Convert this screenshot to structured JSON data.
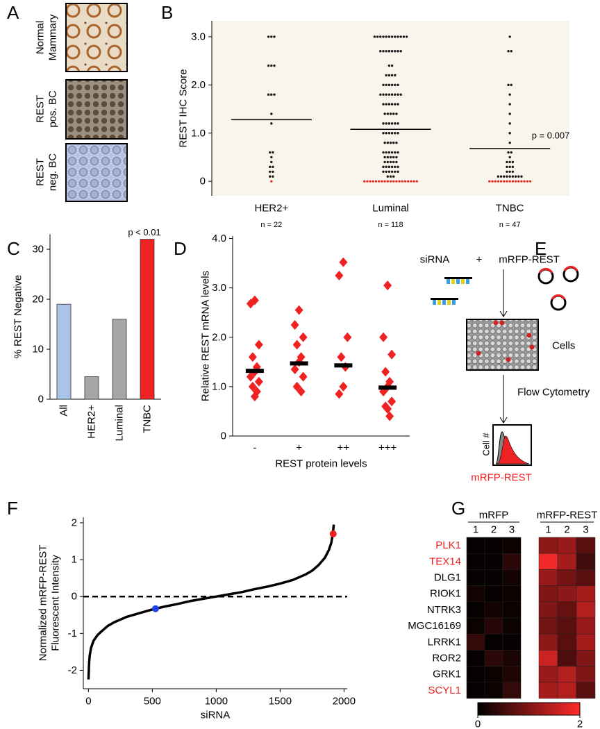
{
  "panel_a": {
    "label": "A",
    "images": [
      {
        "lines": [
          "Normal",
          "Mammary"
        ]
      },
      {
        "lines": [
          "REST",
          "pos. BC"
        ]
      },
      {
        "lines": [
          "REST",
          "neg. BC"
        ]
      }
    ]
  },
  "panel_e": {
    "label": "E",
    "sirna": "siRNA",
    "plus": "+",
    "plasmid": "mRFP-REST",
    "cells": "Cells",
    "method": "Flow Cytometry",
    "y_label": "Cell #",
    "x_label": "mRFP-REST"
  },
  "chart_data": [
    {
      "type": "dotplot",
      "label": "B",
      "y_label": "REST IHC Score",
      "categories": [
        "HER2+",
        "Luminal",
        "TNBC"
      ],
      "n_labels": [
        "n = 22",
        "n = 118",
        "n = 47"
      ],
      "levels": [
        0,
        0.1,
        0.2,
        0.3,
        0.4,
        0.5,
        0.6,
        0.8,
        1.0,
        1.2,
        1.4,
        1.6,
        1.8,
        2.0,
        2.2,
        2.4,
        2.7,
        3.0
      ],
      "counts": [
        [
          1,
          2,
          2,
          2,
          1,
          1,
          2,
          0,
          0,
          1,
          1,
          0,
          3,
          0,
          0,
          3,
          0,
          3
        ],
        [
          19,
          3,
          6,
          6,
          5,
          5,
          6,
          5,
          6,
          6,
          5,
          6,
          8,
          6,
          4,
          2,
          8,
          12
        ],
        [
          15,
          9,
          3,
          3,
          3,
          1,
          2,
          1,
          1,
          1,
          1,
          1,
          1,
          2,
          0,
          0,
          2,
          1
        ]
      ],
      "means": [
        1.28,
        1.08,
        0.68
      ],
      "color": "#1a1a1a",
      "zero_color": "#e8332a",
      "background": "#f8f5ec",
      "annotation": "p = 0.007",
      "ylim": [
        -0.3,
        3.33
      ],
      "yticks": [
        0,
        {
          "value": 1,
          "label": "1.0"
        },
        {
          "value": 2,
          "label": "2.0"
        },
        {
          "value": 3,
          "label": "3.0"
        }
      ]
    },
    {
      "type": "bar",
      "label": "C",
      "y_label": "% REST Negative",
      "categories": [
        "All",
        "HER2+",
        "Luminal",
        "TNBC"
      ],
      "values": [
        19,
        4.5,
        16,
        32
      ],
      "colors": [
        "#a8c4e8",
        "#a6a6a6",
        "#a6a6a6",
        "#ee2222"
      ],
      "annotation": "p < 0.01",
      "ylim": [
        0,
        33
      ],
      "yticks": [
        0,
        10,
        20,
        30
      ]
    },
    {
      "type": "scatter",
      "label": "D",
      "x_label": "REST protein levels",
      "y_label": "Relative REST mRNA levels",
      "categories": [
        "-",
        "+",
        "++",
        "+++"
      ],
      "points": [
        [
          2.75,
          2.68,
          1.85,
          1.6,
          1.4,
          1.3,
          1.2,
          1.1,
          1.0,
          0.9,
          0.8
        ],
        [
          2.55,
          2.25,
          2.0,
          1.85,
          1.6,
          1.5,
          1.35,
          1.2,
          1.0,
          0.9
        ],
        [
          3.52,
          3.25,
          2.0,
          1.6,
          1.4,
          1.0,
          0.85
        ],
        [
          3.05,
          2.0,
          1.65,
          1.3,
          1.1,
          1.0,
          0.9,
          0.7,
          0.6,
          0.4,
          0.55
        ]
      ],
      "means": [
        1.32,
        1.47,
        1.43,
        0.98
      ],
      "color": "#ee2222",
      "ylim": [
        0,
        4.05
      ],
      "yticks": [
        0,
        {
          "value": 1,
          "label": "1.0"
        },
        {
          "value": 2,
          "label": "2.0"
        },
        {
          "value": 3,
          "label": "3.0"
        },
        {
          "value": 4,
          "label": "4.0"
        }
      ]
    },
    {
      "type": "line",
      "label": "F",
      "x_label": "siRNA",
      "y_label": [
        "Normalized mRFP-REST",
        "Fluorescent Intensity"
      ],
      "x": [
        0,
        5,
        10,
        20,
        40,
        70,
        100,
        150,
        200,
        300,
        400,
        500,
        600,
        700,
        800,
        900,
        1000,
        1100,
        1200,
        1300,
        1400,
        1500,
        1600,
        1700,
        1750,
        1800,
        1850,
        1880,
        1900,
        1910,
        1920
      ],
      "y": [
        -2.25,
        -1.8,
        -1.6,
        -1.4,
        -1.2,
        -1.05,
        -0.95,
        -0.8,
        -0.7,
        -0.55,
        -0.45,
        -0.35,
        -0.27,
        -0.2,
        -0.12,
        -0.06,
        0,
        0.06,
        0.12,
        0.2,
        0.27,
        0.35,
        0.45,
        0.6,
        0.7,
        0.85,
        1.05,
        1.25,
        1.45,
        1.65,
        1.95
      ],
      "color": "#000000",
      "highlights": [
        {
          "x": 525,
          "y": -0.33,
          "color": "#2244ee"
        },
        {
          "x": 1915,
          "y": 1.7,
          "color": "#ee2222"
        }
      ],
      "reference_line": 0,
      "xlim": [
        -40,
        2025
      ],
      "ylim": [
        -2.5,
        2.15
      ],
      "xticks": [
        0,
        500,
        1000,
        1500,
        2000
      ],
      "yticks": [
        -2,
        -1,
        0,
        1,
        2
      ]
    },
    {
      "type": "heatmap",
      "label": "G",
      "rows": [
        "PLK1",
        "TEX14",
        "DLG1",
        "RIOK1",
        "NTRK3",
        "MGC16169",
        "LRRK1",
        "ROR2",
        "GRK1",
        "SCYL1"
      ],
      "row_colors": [
        "#ee2222",
        "#ee2222",
        "#000000",
        "#000000",
        "#000000",
        "#000000",
        "#000000",
        "#000000",
        "#000000",
        "#ee2222"
      ],
      "groups": [
        {
          "name": "mRFP",
          "columns": [
            "1",
            "2",
            "3"
          ],
          "values": [
            [
              0.05,
              0.05,
              0.1
            ],
            [
              0.05,
              0.05,
              0.35
            ],
            [
              0.05,
              0.05,
              0.15
            ],
            [
              0.15,
              0.05,
              0.1
            ],
            [
              0.05,
              0.15,
              0.1
            ],
            [
              0.1,
              0.3,
              0.1
            ],
            [
              0.4,
              0.05,
              0.05
            ],
            [
              0.05,
              0.35,
              0.2
            ],
            [
              0.05,
              0.1,
              0.25
            ],
            [
              0.05,
              0.1,
              0.4
            ]
          ]
        },
        {
          "name": "mRFP-REST",
          "columns": [
            "1",
            "2",
            "3"
          ],
          "values": [
            [
              1.1,
              1.2,
              0.7
            ],
            [
              1.9,
              1.3,
              0.5
            ],
            [
              1.2,
              0.9,
              0.7
            ],
            [
              1.0,
              1.1,
              1.3
            ],
            [
              1.0,
              0.8,
              1.4
            ],
            [
              0.9,
              0.7,
              1.2
            ],
            [
              1.1,
              0.7,
              1.3
            ],
            [
              1.6,
              0.6,
              1.0
            ],
            [
              1.2,
              1.4,
              1.0
            ],
            [
              1.3,
              1.4,
              0.7
            ]
          ]
        }
      ],
      "clim": [
        0,
        2
      ],
      "cticks": [
        0,
        2
      ],
      "colors": [
        "#000000",
        "#ff2b2b"
      ]
    }
  ]
}
